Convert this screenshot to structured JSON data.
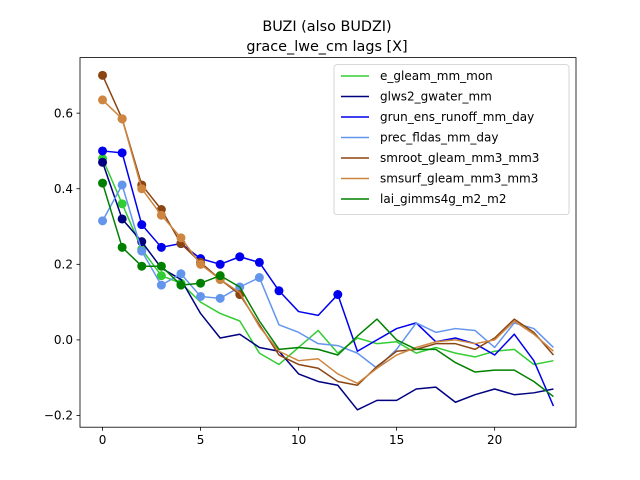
{
  "chart_data": {
    "type": "line",
    "title": "BUZI (also BUDZI)",
    "subtitle": "grace_lwe_cm lags [X]",
    "xlabel": "",
    "ylabel": "",
    "xlim": [
      -1.15,
      24.15
    ],
    "ylim": [
      -0.231,
      0.747
    ],
    "xticks": [
      0,
      5,
      10,
      15,
      20
    ],
    "yticks": [
      -0.2,
      0.0,
      0.2,
      0.4,
      0.6
    ],
    "ytick_labels": [
      "−0.2",
      "0.0",
      "0.2",
      "0.4",
      "0.6"
    ],
    "legend_position": "top-right",
    "series": [
      {
        "name": "e_gleam_mm_mon",
        "color": "#32cd32",
        "values": [
          0.48,
          0.36,
          0.24,
          0.17,
          0.15,
          0.1,
          0.07,
          0.05,
          -0.035,
          -0.065,
          -0.02,
          0.025,
          -0.035,
          0.005,
          -0.01,
          -0.005,
          -0.035,
          -0.02,
          -0.035,
          -0.045,
          -0.03,
          -0.025,
          -0.065,
          -0.055
        ],
        "markers": [
          0,
          1,
          2,
          3,
          4
        ]
      },
      {
        "name": "glws2_gwater_mm",
        "color": "#000080",
        "values": [
          0.47,
          0.32,
          0.26,
          0.19,
          0.16,
          0.07,
          0.005,
          0.015,
          -0.02,
          -0.03,
          -0.09,
          -0.11,
          -0.12,
          -0.185,
          -0.16,
          -0.16,
          -0.13,
          -0.125,
          -0.165,
          -0.145,
          -0.13,
          -0.145,
          -0.14,
          -0.13
        ],
        "markers": [
          0,
          1,
          2
        ]
      },
      {
        "name": "grun_ens_runoff_mm_day",
        "color": "#0000ee",
        "values": [
          0.5,
          0.495,
          0.305,
          0.245,
          0.255,
          0.215,
          0.2,
          0.22,
          0.205,
          0.13,
          0.075,
          0.065,
          0.12,
          -0.03,
          0.0,
          0.03,
          0.045,
          -0.005,
          0.005,
          -0.01,
          -0.04,
          0.015,
          -0.055,
          -0.175
        ],
        "markers": [
          0,
          1,
          2,
          3,
          4,
          5,
          6,
          7,
          8,
          9,
          12
        ]
      },
      {
        "name": "prec_fldas_mm_day",
        "color": "#6495ed",
        "values": [
          0.315,
          0.41,
          0.235,
          0.145,
          0.175,
          0.115,
          0.11,
          0.14,
          0.165,
          0.04,
          0.02,
          -0.01,
          -0.015,
          -0.035,
          -0.075,
          -0.025,
          0.045,
          0.02,
          0.03,
          0.025,
          -0.02,
          0.045,
          0.03,
          -0.02
        ],
        "markers": [
          0,
          1,
          2,
          3,
          4,
          5,
          6,
          7,
          8
        ]
      },
      {
        "name": "smroot_gleam_mm3_mm3",
        "color": "#8b4513",
        "values": [
          0.7,
          0.585,
          0.41,
          0.345,
          0.255,
          0.205,
          0.16,
          0.12,
          0.04,
          -0.04,
          -0.065,
          -0.075,
          -0.11,
          -0.12,
          -0.07,
          -0.03,
          -0.025,
          -0.01,
          -0.01,
          -0.025,
          0.005,
          0.055,
          0.02,
          -0.04
        ],
        "markers": [
          0,
          1,
          2,
          3,
          4,
          5,
          6,
          7
        ]
      },
      {
        "name": "smsurf_gleam_mm3_mm3",
        "color": "#cd853f",
        "values": [
          0.635,
          0.585,
          0.4,
          0.33,
          0.27,
          0.2,
          0.16,
          0.125,
          0.035,
          -0.03,
          -0.055,
          -0.05,
          -0.09,
          -0.115,
          -0.075,
          -0.04,
          -0.02,
          -0.005,
          0.0,
          -0.01,
          0.0,
          0.05,
          0.015,
          -0.03
        ],
        "markers": [
          0,
          1,
          2,
          3,
          4,
          5,
          6
        ]
      },
      {
        "name": "lai_gimms4g_m2_m2",
        "color": "#008000",
        "values": [
          0.415,
          0.245,
          0.195,
          0.195,
          0.145,
          0.15,
          0.17,
          0.14,
          0.05,
          -0.025,
          -0.02,
          -0.025,
          -0.04,
          0.01,
          0.055,
          0.0,
          -0.025,
          -0.025,
          -0.06,
          -0.085,
          -0.08,
          -0.08,
          -0.11,
          -0.15
        ],
        "markers": [
          0,
          1,
          2,
          3,
          4,
          5,
          6
        ]
      }
    ]
  }
}
